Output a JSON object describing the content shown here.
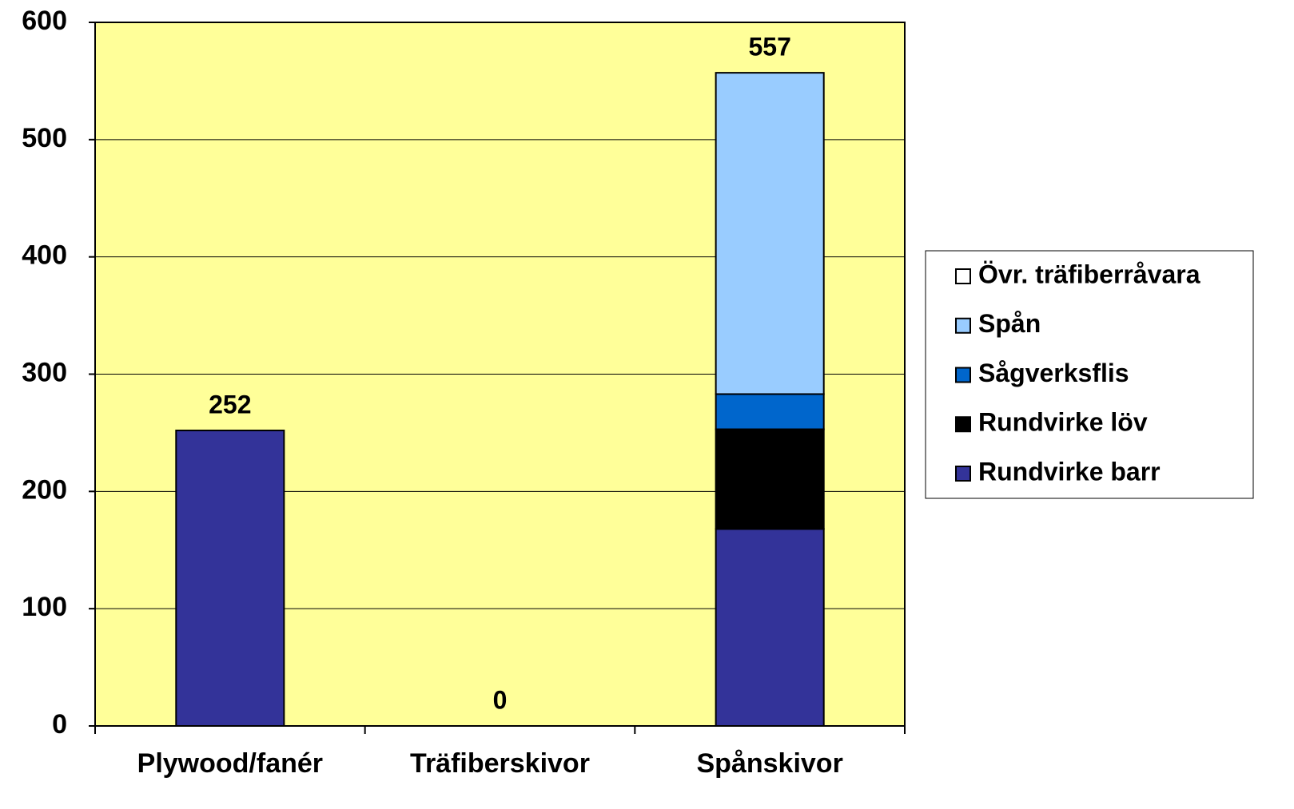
{
  "chart_data": {
    "type": "stacked_bar",
    "categories": [
      "Plywood/fanér",
      "Träfiberskivor",
      "Spånskivor"
    ],
    "series": [
      {
        "name": "Rundvirke barr",
        "color": "#333399",
        "values": [
          252,
          0,
          168
        ]
      },
      {
        "name": "Rundvirke löv",
        "color": "#000000",
        "values": [
          0,
          0,
          85
        ]
      },
      {
        "name": "Sågverksflis",
        "color": "#0066cc",
        "values": [
          0,
          0,
          30
        ]
      },
      {
        "name": "Spån",
        "color": "#99ccff",
        "values": [
          0,
          0,
          274
        ]
      },
      {
        "name": "Övr. träfiberråvara",
        "color": "#ffffff",
        "values": [
          0,
          0,
          0
        ]
      }
    ],
    "totals": [
      252,
      0,
      557
    ],
    "ylim": [
      0,
      600
    ],
    "yticks": [
      0,
      100,
      200,
      300,
      400,
      500,
      600
    ],
    "grid": true,
    "legend": "right",
    "plot_background": "#ffff99"
  }
}
